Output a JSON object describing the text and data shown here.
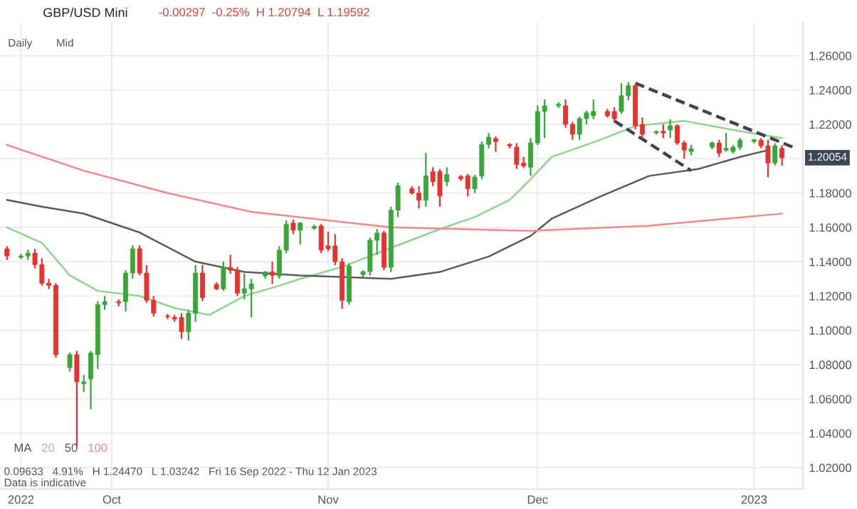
{
  "chart_data": {
    "type": "candlestick",
    "title": "GBP/USD Mini",
    "subtitle": "-0.00297  -0.25%  H 1.20794  L 1.19592",
    "legend_title": "MA",
    "legend": "bottom left",
    "annotations": [
      "Daily",
      "Mid",
      "0.09633   4.91%   H 1.24470   L 1.03242   Fri 16 Sep 2022 - Thu 12 Jan 2023",
      "Data is indicative",
      {
        "text": "1.20054",
        "x": "2023-01-05",
        "y": 1.20054
      }
    ],
    "x": [
      "2022-09-16",
      "2022-09-18",
      "2022-09-19",
      "2022-09-20",
      "2022-09-21",
      "2022-09-22",
      "2022-09-23",
      "2022-09-25",
      "2022-09-26",
      "2022-09-27",
      "2022-09-28",
      "2022-09-29",
      "2022-09-30",
      "2022-10-02",
      "2022-10-03",
      "2022-10-04",
      "2022-10-05",
      "2022-10-06",
      "2022-10-07",
      "2022-10-09",
      "2022-10-10",
      "2022-10-11",
      "2022-10-12",
      "2022-10-13",
      "2022-10-14",
      "2022-10-16",
      "2022-10-17",
      "2022-10-18",
      "2022-10-19",
      "2022-10-20",
      "2022-10-21",
      "2022-10-23",
      "2022-10-24",
      "2022-10-25",
      "2022-10-26",
      "2022-10-27",
      "2022-10-28",
      "2022-10-30",
      "2022-10-31",
      "2022-11-01",
      "2022-11-02",
      "2022-11-03",
      "2022-11-04",
      "2022-11-06",
      "2022-11-07",
      "2022-11-08",
      "2022-11-09",
      "2022-11-10",
      "2022-11-11",
      "2022-11-13",
      "2022-11-14",
      "2022-11-15",
      "2022-11-16",
      "2022-11-17",
      "2022-11-18",
      "2022-11-20",
      "2022-11-21",
      "2022-11-22",
      "2022-11-23",
      "2022-11-24",
      "2022-11-25",
      "2022-11-27",
      "2022-11-28",
      "2022-11-29",
      "2022-11-30",
      "2022-12-01",
      "2022-12-02",
      "2022-12-04",
      "2022-12-05",
      "2022-12-06",
      "2022-12-07",
      "2022-12-08",
      "2022-12-09",
      "2022-12-11",
      "2022-12-12",
      "2022-12-13",
      "2022-12-14",
      "2022-12-15",
      "2022-12-16",
      "2022-12-18",
      "2022-12-19",
      "2022-12-20",
      "2022-12-21",
      "2022-12-22",
      "2022-12-23",
      "2022-12-26",
      "2022-12-27",
      "2022-12-28",
      "2022-12-29",
      "2022-12-30",
      "2023-01-01",
      "2023-01-02",
      "2023-01-03",
      "2023-01-04",
      "2023-01-05"
    ],
    "ohlc": [
      [
        1.1475,
        1.149,
        1.141,
        1.1433
      ],
      [
        1.1425,
        1.1445,
        1.1415,
        1.1433
      ],
      [
        1.1433,
        1.147,
        1.141,
        1.145
      ],
      [
        1.145,
        1.1475,
        1.136,
        1.1383
      ],
      [
        1.1383,
        1.142,
        1.126,
        1.1275
      ],
      [
        1.1275,
        1.13,
        1.124,
        1.1262
      ],
      [
        1.1262,
        1.1275,
        1.084,
        1.0858
      ],
      [
        1.0783,
        1.087,
        1.076,
        1.0858
      ],
      [
        1.0858,
        1.088,
        1.0324,
        1.07
      ],
      [
        1.069,
        1.074,
        1.064,
        1.07
      ],
      [
        1.0717,
        1.088,
        1.054,
        1.0867
      ],
      [
        1.0858,
        1.117,
        1.0775,
        1.115
      ],
      [
        1.115,
        1.12,
        1.112,
        1.1167
      ],
      [
        1.1167,
        1.118,
        1.114,
        1.116
      ],
      [
        1.1167,
        1.135,
        1.111,
        1.1334
      ],
      [
        1.1334,
        1.1495,
        1.13,
        1.1475
      ],
      [
        1.1475,
        1.1495,
        1.132,
        1.1334
      ],
      [
        1.1334,
        1.138,
        1.116,
        1.1175
      ],
      [
        1.1175,
        1.12,
        1.108,
        1.11
      ],
      [
        1.1083,
        1.1095,
        1.1065,
        1.108
      ],
      [
        1.1075,
        1.109,
        1.105,
        1.1065
      ],
      [
        1.1075,
        1.11,
        1.095,
        1.0992
      ],
      [
        1.0992,
        1.112,
        1.094,
        1.11
      ],
      [
        1.11,
        1.138,
        1.105,
        1.1334
      ],
      [
        1.1334,
        1.138,
        1.117,
        1.119
      ],
      [
        1.1267,
        1.128,
        1.1235,
        1.1242
      ],
      [
        1.1242,
        1.14,
        1.123,
        1.1367
      ],
      [
        1.1367,
        1.144,
        1.133,
        1.135
      ],
      [
        1.135,
        1.137,
        1.12,
        1.1217
      ],
      [
        1.1217,
        1.133,
        1.118,
        1.1242
      ],
      [
        1.1242,
        1.13,
        1.1075,
        1.127
      ],
      [
        1.1317,
        1.1345,
        1.13,
        1.134
      ],
      [
        1.134,
        1.14,
        1.127,
        1.132
      ],
      [
        1.1317,
        1.149,
        1.13,
        1.1467
      ],
      [
        1.1467,
        1.164,
        1.145,
        1.1617
      ],
      [
        1.1625,
        1.1645,
        1.156,
        1.1583
      ],
      [
        1.1583,
        1.163,
        1.15,
        1.1625
      ],
      [
        1.1595,
        1.1615,
        1.1585,
        1.1605
      ],
      [
        1.1608,
        1.162,
        1.145,
        1.1467
      ],
      [
        1.1492,
        1.1575,
        1.146,
        1.1475
      ],
      [
        1.1492,
        1.156,
        1.138,
        1.14
      ],
      [
        1.14,
        1.142,
        1.1125,
        1.1175
      ],
      [
        1.1167,
        1.139,
        1.115,
        1.1375
      ],
      [
        1.1325,
        1.135,
        1.131,
        1.1342
      ],
      [
        1.1342,
        1.154,
        1.132,
        1.1525
      ],
      [
        1.1525,
        1.159,
        1.144,
        1.1567
      ],
      [
        1.1567,
        1.158,
        1.135,
        1.1367
      ],
      [
        1.1367,
        1.172,
        1.134,
        1.17
      ],
      [
        1.17,
        1.186,
        1.166,
        1.1842
      ],
      [
        1.1825,
        1.184,
        1.179,
        1.18
      ],
      [
        1.18,
        1.184,
        1.171,
        1.1758
      ],
      [
        1.1758,
        1.2033,
        1.172,
        1.19
      ],
      [
        1.1925,
        1.195,
        1.184,
        1.1867
      ],
      [
        1.1925,
        1.194,
        1.172,
        1.1783
      ],
      [
        1.1867,
        1.195,
        1.184,
        1.1908
      ],
      [
        1.1895,
        1.1905,
        1.187,
        1.1883
      ],
      [
        1.19,
        1.191,
        1.178,
        1.1825
      ],
      [
        1.1825,
        1.1905,
        1.18,
        1.1893
      ],
      [
        1.19,
        1.21,
        1.188,
        1.2083
      ],
      [
        1.2083,
        1.215,
        1.206,
        1.2125
      ],
      [
        1.2117,
        1.213,
        1.204,
        1.21
      ],
      [
        1.2083,
        1.209,
        1.206,
        1.2075
      ],
      [
        1.2067,
        1.209,
        1.194,
        1.1967
      ],
      [
        1.1975,
        1.201,
        1.1945,
        1.1958
      ],
      [
        1.195,
        1.212,
        1.19,
        1.2092
      ],
      [
        1.2092,
        1.231,
        1.208,
        1.2275
      ],
      [
        1.2275,
        1.2345,
        1.212,
        1.2308
      ],
      [
        1.2308,
        1.233,
        1.2295,
        1.2317
      ],
      [
        1.2308,
        1.2345,
        1.218,
        1.22
      ],
      [
        1.22,
        1.2215,
        1.211,
        1.2142
      ],
      [
        1.2142,
        1.2245,
        1.211,
        1.2233
      ],
      [
        1.2233,
        1.228,
        1.22,
        1.2267
      ],
      [
        1.225,
        1.2345,
        1.223,
        1.2275
      ],
      [
        1.2275,
        1.229,
        1.224,
        1.225
      ],
      [
        1.2275,
        1.23,
        1.221,
        1.2233
      ],
      [
        1.2275,
        1.244,
        1.226,
        1.2367
      ],
      [
        1.2367,
        1.2447,
        1.234,
        1.2425
      ],
      [
        1.2425,
        1.2435,
        1.217,
        1.2192
      ],
      [
        1.22,
        1.224,
        1.212,
        1.2142
      ],
      [
        1.215,
        1.2165,
        1.214,
        1.2158
      ],
      [
        1.216,
        1.22,
        1.212,
        1.215
      ],
      [
        1.2167,
        1.223,
        1.212,
        1.2192
      ],
      [
        1.2192,
        1.22,
        1.208,
        1.2092
      ],
      [
        1.2092,
        1.2105,
        1.2,
        1.205
      ],
      [
        1.2042,
        1.208,
        1.202,
        1.2058
      ],
      [
        1.2067,
        1.21,
        1.2055,
        1.2092
      ],
      [
        1.2092,
        1.211,
        1.201,
        1.2033
      ],
      [
        1.205,
        1.215,
        1.204,
        1.206
      ],
      [
        1.2042,
        1.208,
        1.203,
        1.2067
      ],
      [
        1.2067,
        1.212,
        1.205,
        1.2108
      ],
      [
        1.21,
        1.2115,
        1.209,
        1.211
      ],
      [
        1.2108,
        1.212,
        1.206,
        1.2075
      ],
      [
        1.2075,
        1.211,
        1.1892,
        1.1975
      ],
      [
        1.1975,
        1.209,
        1.196,
        1.2075
      ],
      [
        1.206,
        1.2079,
        1.1959,
        1.2005
      ]
    ],
    "colors": [
      "#e8322f",
      "#3aa63a",
      "#3aa63a",
      "#e8322f",
      "#e8322f",
      "#e8322f",
      "#e8322f",
      "#3aa63a",
      "#e8322f",
      "#3aa63a",
      "#3aa63a",
      "#3aa63a",
      "#3aa63a",
      "#e8322f",
      "#3aa63a",
      "#3aa63a",
      "#e8322f",
      "#e8322f",
      "#e8322f",
      "#e8322f",
      "#e8322f",
      "#e8322f",
      "#3aa63a",
      "#3aa63a",
      "#e8322f",
      "#e8322f",
      "#3aa63a",
      "#e8322f",
      "#e8322f",
      "#3aa63a",
      "#3aa63a",
      "#3aa63a",
      "#e8322f",
      "#3aa63a",
      "#3aa63a",
      "#e8322f",
      "#3aa63a",
      "#3aa63a",
      "#e8322f",
      "#e8322f",
      "#e8322f",
      "#e8322f",
      "#3aa63a",
      "#3aa63a",
      "#3aa63a",
      "#3aa63a",
      "#e8322f",
      "#3aa63a",
      "#3aa63a",
      "#e8322f",
      "#e8322f",
      "#3aa63a",
      "#e8322f",
      "#e8322f",
      "#3aa63a",
      "#e8322f",
      "#e8322f",
      "#3aa63a",
      "#3aa63a",
      "#3aa63a",
      "#e8322f",
      "#e8322f",
      "#e8322f",
      "#e8322f",
      "#3aa63a",
      "#3aa63a",
      "#3aa63a",
      "#3aa63a",
      "#e8322f",
      "#e8322f",
      "#3aa63a",
      "#3aa63a",
      "#3aa63a",
      "#e8322f",
      "#e8322f",
      "#3aa63a",
      "#3aa63a",
      "#e8322f",
      "#e8322f",
      "#3aa63a",
      "#e8322f",
      "#3aa63a",
      "#e8322f",
      "#e8322f",
      "#3aa63a",
      "#3aa63a",
      "#e8322f",
      "#3aa63a",
      "#3aa63a",
      "#3aa63a",
      "#3aa63a",
      "#e8322f",
      "#e8322f",
      "#3aa63a",
      "#e8322f"
    ],
    "series": [
      {
        "type": "line",
        "name": "20",
        "color": "#8fd48f",
        "x": [
          "2022-09-16",
          "2022-09-21",
          "2022-09-25",
          "2022-09-29",
          "2022-10-05",
          "2022-10-10",
          "2022-10-15",
          "2022-10-20",
          "2022-10-25",
          "2022-10-28",
          "2022-11-03",
          "2022-11-10",
          "2022-11-17",
          "2022-11-22",
          "2022-11-27",
          "2022-11-30",
          "2022-12-03",
          "2022-12-10",
          "2022-12-15",
          "2022-12-22",
          "2022-12-30",
          "2023-01-05"
        ],
        "values": [
          1.16,
          1.151,
          1.132,
          1.123,
          1.12,
          1.113,
          1.109,
          1.12,
          1.126,
          1.13,
          1.137,
          1.148,
          1.159,
          1.166,
          1.176,
          1.188,
          1.201,
          1.211,
          1.219,
          1.222,
          1.216,
          1.212
        ]
      },
      {
        "type": "line",
        "name": "50",
        "color": "#5a5a5a",
        "x": [
          "2022-09-16",
          "2022-09-21",
          "2022-09-27",
          "2022-10-05",
          "2022-10-13",
          "2022-10-20",
          "2022-10-28",
          "2022-11-10",
          "2022-11-17",
          "2022-11-24",
          "2022-11-30",
          "2022-12-03",
          "2022-12-10",
          "2022-12-17",
          "2022-12-24",
          "2022-12-30",
          "2023-01-03"
        ],
        "values": [
          1.176,
          1.172,
          1.168,
          1.157,
          1.14,
          1.134,
          1.132,
          1.13,
          1.134,
          1.143,
          1.155,
          1.165,
          1.178,
          1.19,
          1.194,
          1.201,
          1.205
        ]
      },
      {
        "type": "line",
        "name": "100",
        "color": "#f08a8a",
        "x": [
          "2022-09-16",
          "2022-09-27",
          "2022-10-09",
          "2022-10-21",
          "2022-11-10",
          "2022-11-30",
          "2022-12-17",
          "2023-01-05"
        ],
        "values": [
          1.208,
          1.193,
          1.18,
          1.169,
          1.16,
          1.158,
          1.161,
          1.168
        ]
      },
      {
        "type": "line",
        "color": "#3d4451",
        "line_style": "dashed",
        "x": [
          "2022-12-15",
          "2023-01-07"
        ],
        "values": [
          1.244,
          1.206
        ]
      },
      {
        "type": "line",
        "color": "#3d4451",
        "line_style": "dashed",
        "x": [
          "2022-12-12",
          "2022-12-23"
        ],
        "values": [
          1.222,
          1.193
        ]
      }
    ],
    "xlim": [
      "2022-09-15",
      "2023-01-08"
    ],
    "xticks": [
      {
        "value": "2022-09-18",
        "label": "2022"
      },
      {
        "value": "2022-10-01",
        "label": "Oct"
      },
      {
        "value": "2022-11-01",
        "label": "Nov"
      },
      {
        "value": "2022-12-01",
        "label": "Dec"
      },
      {
        "value": "2023-01-01",
        "label": "2023"
      }
    ],
    "ylim": [
      1.0075,
      1.2792
    ],
    "yticks": [
      {
        "value": 1.02,
        "label": "1.02000"
      },
      {
        "value": 1.04,
        "label": "1.04000"
      },
      {
        "value": 1.06,
        "label": "1.06000"
      },
      {
        "value": 1.08,
        "label": "1.08000"
      },
      {
        "value": 1.1,
        "label": "1.10000"
      },
      {
        "value": 1.12,
        "label": "1.12000"
      },
      {
        "value": 1.14,
        "label": "1.14000"
      },
      {
        "value": 1.16,
        "label": "1.16000"
      },
      {
        "value": 1.18,
        "label": "1.18000"
      },
      {
        "value": 1.2,
        "label": null
      },
      {
        "value": 1.22,
        "label": "1.22000"
      },
      {
        "value": 1.24,
        "label": "1.24000"
      },
      {
        "value": 1.26,
        "label": "1.26000"
      }
    ],
    "grid": true
  }
}
